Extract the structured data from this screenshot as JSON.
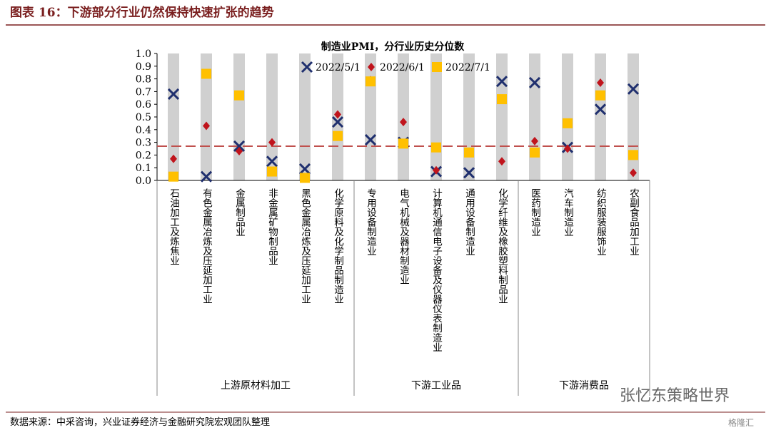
{
  "page_title": "图表 16：下游部分行业仍然保持快速扩张的趋势",
  "source": "数据来源：中采咨询，兴业证券经济与金融研究院宏观团队整理",
  "watermark": "张忆东策略世界",
  "logo": "格隆汇",
  "chart_data": {
    "type": "scatter",
    "title": "制造业PMI，分行业历史分位数",
    "categories": [
      "石油加工及炼焦业",
      "有色金属冶炼及压延加工业",
      "金属制品业",
      "非金属矿物制品业",
      "黑色金属冶炼及压延加工业",
      "化学原料及化学制品制造业",
      "专用设备制造业",
      "电气机械及器材制造业",
      "计算机通信电子设备及仪器仪表制造业",
      "通用设备制造业",
      "化学纤维及橡胶塑料制品业",
      "医药制造业",
      "汽车制造业",
      "纺织服装服饰业",
      "农副食品加工业"
    ],
    "groups": [
      {
        "name": "上游原材料加工",
        "count": 6
      },
      {
        "name": "下游工业品",
        "count": 5
      },
      {
        "name": "下游消费品",
        "count": 4
      }
    ],
    "series": [
      {
        "name": "2022/5/1",
        "color": "#1f2f6e",
        "marker": "x",
        "values": [
          0.68,
          0.03,
          0.27,
          0.15,
          0.09,
          0.46,
          0.32,
          0.3,
          0.07,
          0.06,
          0.78,
          0.77,
          0.26,
          0.56,
          0.72
        ]
      },
      {
        "name": "2022/6/1",
        "color": "#c0141c",
        "marker": "diamond",
        "values": [
          0.17,
          0.43,
          0.23,
          0.3,
          0.02,
          0.52,
          0.79,
          0.46,
          0.08,
          0.22,
          0.15,
          0.31,
          0.25,
          0.77,
          0.06
        ]
      },
      {
        "name": "2022/7/1",
        "color": "#ffc000",
        "marker": "square",
        "values": [
          0.03,
          0.84,
          0.67,
          0.07,
          0.02,
          0.35,
          0.78,
          0.29,
          0.26,
          0.22,
          0.64,
          0.22,
          0.45,
          0.67,
          0.2
        ]
      }
    ],
    "reference_line": 0.27,
    "ylim": [
      0,
      1
    ],
    "yticks": [
      {
        "value": 0,
        "label": "0.0"
      },
      0.1,
      0.2,
      0.3,
      0.4,
      0.5,
      0.6,
      0.7,
      0.8,
      0.9,
      {
        "value": 1,
        "label": "1.0"
      }
    ]
  }
}
